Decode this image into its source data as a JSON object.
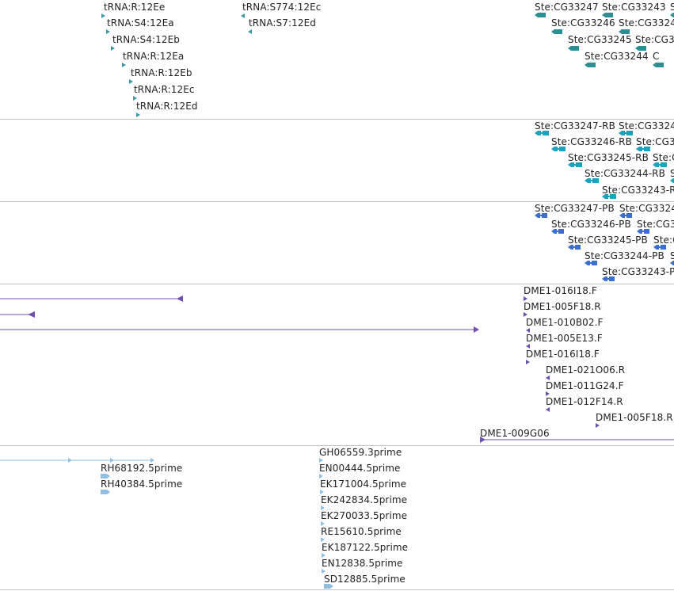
{
  "colors": {
    "trna": "#3a9aa8",
    "gene": "#2b8f93",
    "transcript": "#1aa3bf",
    "protein": "#3a6fd1",
    "clone": "#6f4fb0",
    "est": "#8fc0e3",
    "divider": "#c4c4c4"
  },
  "tracks": {
    "trna": {
      "features": [
        {
          "label": "tRNA:R:12Ee",
          "dir": "right"
        },
        {
          "label": "tRNA:S4:12Ea",
          "dir": "right"
        },
        {
          "label": "tRNA:S4:12Eb",
          "dir": "right"
        },
        {
          "label": "tRNA:R:12Ea",
          "dir": "right"
        },
        {
          "label": "tRNA:R:12Eb",
          "dir": "right"
        },
        {
          "label": "tRNA:R:12Ec",
          "dir": "right"
        },
        {
          "label": "tRNA:R:12Ed",
          "dir": "right"
        },
        {
          "label": "tRNA:S774:12Ec",
          "dir": "left"
        },
        {
          "label": "tRNA:S7:12Ed",
          "dir": "left"
        }
      ]
    },
    "genes": {
      "features": [
        {
          "label": "Ste:CG33247"
        },
        {
          "label": "Ste:CG33243"
        },
        {
          "label": "S"
        },
        {
          "label": "Ste:CG33246"
        },
        {
          "label": "Ste:CG3324"
        },
        {
          "label": "Ste:CG33245"
        },
        {
          "label": "Ste:CG3"
        },
        {
          "label": "Ste:CG33244"
        },
        {
          "label": "C"
        }
      ]
    },
    "transcripts": {
      "features": [
        {
          "label": "Ste:CG33247-RB"
        },
        {
          "label": "Ste:CG3324"
        },
        {
          "label": "Ste:CG33246-RB"
        },
        {
          "label": "Ste:CG3"
        },
        {
          "label": "Ste:CG33245-RB"
        },
        {
          "label": "Ste:C"
        },
        {
          "label": "Ste:CG33244-RB"
        },
        {
          "label": "S"
        },
        {
          "label": "Ste:CG33243-R"
        }
      ]
    },
    "proteins": {
      "features": [
        {
          "label": "Ste:CG33247-PB"
        },
        {
          "label": "Ste:CG3324"
        },
        {
          "label": "Ste:CG33246-PB"
        },
        {
          "label": "Ste:CG3"
        },
        {
          "label": "Ste:CG33245-PB"
        },
        {
          "label": "Ste:C"
        },
        {
          "label": "Ste:CG33244-PB"
        },
        {
          "label": "S"
        },
        {
          "label": "Ste:CG33243-P"
        }
      ]
    },
    "clones": {
      "features": [
        {
          "label": "DME1-016I18.F"
        },
        {
          "label": "DME1-005F18.R"
        },
        {
          "label": "DME1-010B02.F"
        },
        {
          "label": "DME1-005E13.F"
        },
        {
          "label": "DME1-016I18.F"
        },
        {
          "label": "DME1-021O06.R"
        },
        {
          "label": "DME1-011G24.F"
        },
        {
          "label": "DME1-012F14.R"
        },
        {
          "label": "DME1-005F18.R"
        },
        {
          "label": "DME1-009G06"
        }
      ]
    },
    "ests": {
      "features": [
        {
          "label": "RH68192.5prime"
        },
        {
          "label": "RH40384.5prime"
        },
        {
          "label": "GH06559.3prime"
        },
        {
          "label": "EN00444.5prime"
        },
        {
          "label": "EK171004.5prime"
        },
        {
          "label": "EK242834.5prime"
        },
        {
          "label": "EK270033.5prime"
        },
        {
          "label": "RE15610.5prime"
        },
        {
          "label": "EK187122.5prime"
        },
        {
          "label": "EN12838.5prime"
        },
        {
          "label": "SD12885.5prime"
        }
      ]
    }
  }
}
